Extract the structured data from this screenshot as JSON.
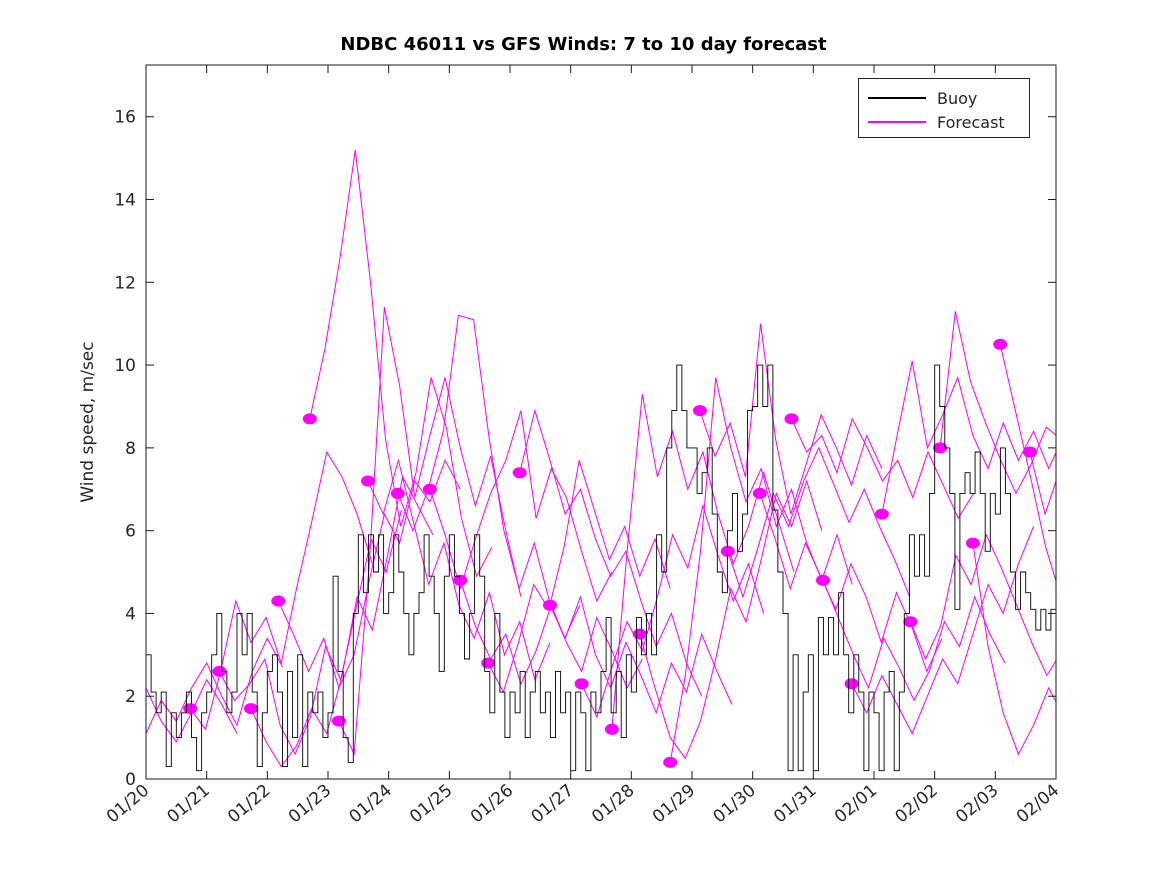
{
  "figure": {
    "title": "NDBC 46011 vs GFS Winds: 7 to 10 day forecast",
    "ylabel": "Wind speed, m/sec"
  },
  "legend": {
    "items": [
      {
        "label": "Buoy",
        "color": "#000000"
      },
      {
        "label": "Forecast",
        "color": "#ff00ff"
      }
    ]
  },
  "chart_data": {
    "type": "line",
    "title": "NDBC 46011 vs GFS Winds: 7 to 10 day forecast",
    "xlabel": "",
    "ylabel": "Wind speed, m/sec",
    "x_tick_labels": [
      "01/20",
      "01/21",
      "01/22",
      "01/23",
      "01/24",
      "01/25",
      "01/26",
      "01/27",
      "01/28",
      "01/29",
      "01/30",
      "01/31",
      "02/01",
      "02/02",
      "02/03",
      "02/04"
    ],
    "y_ticks": [
      0,
      2,
      4,
      6,
      8,
      10,
      12,
      14,
      16
    ],
    "xlim_days": [
      0,
      15
    ],
    "ylim": [
      0,
      17.25
    ],
    "grid": false,
    "legend_position": "top-right",
    "series": [
      {
        "name": "Buoy",
        "type": "step",
        "color": "#000000"
      },
      {
        "name": "Forecast",
        "type": "line-with-start-dots",
        "color": "#ff00ff"
      }
    ],
    "buoy": {
      "color": "#000000",
      "t0": 0,
      "dt": 0.0833333,
      "values": [
        3.0,
        2.1,
        1.6,
        2.1,
        0.3,
        1.6,
        1.0,
        1.6,
        2.1,
        1.0,
        0.2,
        1.6,
        2.1,
        3.0,
        4.0,
        2.6,
        1.6,
        2.1,
        4.0,
        3.0,
        4.0,
        2.1,
        0.3,
        1.6,
        2.6,
        3.0,
        2.1,
        0.3,
        2.6,
        1.0,
        3.0,
        0.3,
        2.1,
        1.6,
        2.1,
        1.0,
        1.6,
        4.9,
        2.6,
        1.0,
        0.4,
        4.0,
        5.9,
        4.5,
        5.9,
        5.0,
        5.9,
        4.0,
        4.5,
        5.9,
        5.0,
        4.0,
        3.0,
        4.0,
        4.5,
        5.9,
        4.9,
        4.0,
        2.6,
        4.9,
        5.9,
        4.9,
        4.0,
        2.9,
        4.0,
        5.9,
        4.9,
        2.6,
        1.6,
        4.0,
        2.1,
        1.0,
        2.1,
        1.6,
        2.6,
        1.0,
        2.1,
        2.6,
        1.6,
        2.1,
        1.0,
        2.6,
        1.6,
        2.1,
        0.2,
        2.1,
        1.6,
        0.2,
        2.1,
        1.6,
        2.6,
        3.9,
        1.6,
        2.6,
        1.0,
        3.0,
        2.1,
        3.9,
        3.0,
        4.0,
        3.0,
        5.9,
        5.0,
        8.0,
        8.9,
        10.0,
        8.9,
        8.0,
        8.0,
        6.9,
        7.4,
        8.0,
        6.4,
        5.0,
        4.5,
        6.0,
        6.9,
        5.5,
        6.4,
        8.9,
        9.0,
        10.0,
        9.0,
        10.0,
        6.5,
        5.0,
        4.0,
        0.2,
        3.0,
        0.2,
        2.1,
        3.0,
        0.2,
        3.9,
        3.0,
        3.9,
        3.0,
        4.5,
        3.0,
        1.6,
        3.0,
        2.1,
        0.2,
        2.1,
        1.6,
        0.2,
        2.1,
        2.6,
        0.2,
        2.1,
        4.0,
        5.9,
        4.9,
        5.9,
        4.9,
        6.9,
        10.0,
        9.0,
        8.0,
        6.9,
        4.1,
        6.9,
        7.4,
        6.9,
        7.9,
        6.9,
        5.5,
        6.9,
        6.4,
        8.0,
        6.9,
        5.0,
        4.1,
        5.0,
        4.5,
        4.1,
        3.6,
        4.1,
        3.6,
        4.1,
        4.0
      ]
    },
    "forecast": {
      "color": "#ff00ff",
      "dt": 0.25,
      "traces": [
        {
          "t0": -1.5,
          "dot": false,
          "v": [
            1.8,
            1.3,
            2.0,
            1.5,
            2.1,
            1.6,
            2.2,
            1.4,
            0.9,
            1.6,
            2.4,
            1.8,
            1.1
          ]
        },
        {
          "t0": -0.75,
          "dot": false,
          "v": [
            2.2,
            1.6,
            2.3,
            1.1,
            1.9,
            1.4,
            2.2,
            2.8,
            2.0,
            1.3,
            2.6,
            3.4,
            2.7
          ]
        },
        {
          "t0": 0.73,
          "dot": true,
          "v": [
            1.7,
            1.2,
            2.6,
            4.3,
            3.3,
            3.9,
            2.8,
            4.6,
            6.2,
            7.9,
            7.3,
            6.4,
            5.2
          ]
        },
        {
          "t0": 1.21,
          "dot": true,
          "v": [
            2.6,
            1.9,
            2.3,
            2.9,
            1.3,
            0.6,
            1.5,
            3.2,
            2.4,
            4.1,
            5.8,
            5.0,
            6.5
          ]
        },
        {
          "t0": 1.73,
          "dot": true,
          "v": [
            1.7,
            0.9,
            0.3,
            0.8,
            1.7,
            1.1,
            2.5,
            4.4,
            3.6,
            5.4,
            7.3,
            6.6,
            5.9
          ]
        },
        {
          "t0": 2.18,
          "dot": true,
          "v": [
            4.3,
            3.5,
            2.6,
            3.4,
            2.2,
            3.0,
            4.8,
            6.4,
            5.7,
            7.2,
            6.7,
            7.7,
            7.0
          ]
        },
        {
          "t0": 2.7,
          "dot": true,
          "v": [
            8.7,
            10.4,
            12.6,
            15.2,
            12.0,
            8.2,
            6.1,
            7.4,
            9.7,
            8.5,
            6.3,
            4.9,
            5.6
          ]
        },
        {
          "t0": 3.18,
          "dot": true,
          "v": [
            1.4,
            0.6,
            5.2,
            11.4,
            9.5,
            6.8,
            8.3,
            9.7,
            8.0,
            6.6,
            7.8,
            6.0,
            4.4
          ]
        },
        {
          "t0": 3.66,
          "dot": true,
          "v": [
            7.2,
            6.4,
            7.7,
            6.2,
            4.7,
            5.7,
            4.2,
            3.4,
            4.5,
            3.0,
            3.8,
            2.4,
            3.3
          ]
        },
        {
          "t0": 4.15,
          "dot": true,
          "v": [
            6.9,
            6.0,
            7.0,
            8.4,
            11.2,
            11.1,
            8.3,
            6.0,
            4.6,
            5.7,
            4.3,
            3.4,
            4.2
          ]
        },
        {
          "t0": 4.68,
          "dot": true,
          "v": [
            7.0,
            5.9,
            4.6,
            5.8,
            6.9,
            7.7,
            8.9,
            6.3,
            7.5,
            6.8,
            5.5,
            4.3,
            5.0
          ]
        },
        {
          "t0": 5.18,
          "dot": true,
          "v": [
            4.8,
            3.7,
            2.9,
            3.5,
            2.3,
            3.1,
            4.2,
            3.3,
            2.6,
            3.9,
            3.1,
            2.2,
            2.9
          ]
        },
        {
          "t0": 5.64,
          "dot": true,
          "v": [
            2.8,
            2.1,
            3.3,
            4.7,
            4.1,
            5.6,
            7.7,
            6.5,
            5.3,
            6.1,
            4.9,
            5.8,
            4.6
          ]
        },
        {
          "t0": 6.16,
          "dot": true,
          "v": [
            7.4,
            8.9,
            7.7,
            6.4,
            7.0,
            5.8,
            4.9,
            5.5,
            4.3,
            3.2,
            4.0,
            2.8,
            2.0
          ]
        },
        {
          "t0": 6.66,
          "dot": true,
          "v": [
            4.2,
            3.4,
            4.4,
            3.0,
            2.2,
            3.3,
            2.5,
            1.6,
            2.8,
            2.1,
            3.5,
            2.6,
            1.8
          ]
        },
        {
          "t0": 7.18,
          "dot": true,
          "v": [
            2.3,
            1.5,
            2.7,
            3.8,
            3.1,
            4.4,
            5.9,
            5.1,
            6.6,
            5.4,
            4.3,
            5.2,
            4.0
          ]
        },
        {
          "t0": 7.68,
          "dot": true,
          "v": [
            1.2,
            5.5,
            9.3,
            7.3,
            8.4,
            7.0,
            7.9,
            6.4,
            5.2,
            6.1,
            7.4,
            6.2,
            5.0
          ]
        },
        {
          "t0": 8.14,
          "dot": true,
          "v": [
            3.5,
            2.2,
            1.0,
            0.5,
            1.4,
            2.9,
            4.6,
            3.8,
            5.3,
            6.9,
            6.1,
            7.2,
            6.0
          ]
        },
        {
          "t0": 8.64,
          "dot": true,
          "v": [
            0.4,
            2.5,
            5.5,
            9.7,
            8.0,
            6.7,
            7.5,
            6.1,
            7.0,
            5.7,
            4.8,
            5.9,
            4.7
          ]
        },
        {
          "t0": 9.13,
          "dot": true,
          "v": [
            8.9,
            7.8,
            8.6,
            7.3,
            11.0,
            8.2,
            6.4,
            7.6,
            8.8,
            8.0,
            7.1,
            8.3,
            7.5
          ]
        },
        {
          "t0": 9.59,
          "dot": true,
          "v": [
            5.5,
            4.4,
            5.6,
            6.9,
            6.1,
            7.2,
            8.0,
            7.1,
            6.2,
            7.0,
            6.1,
            5.3,
            4.4
          ]
        },
        {
          "t0": 10.12,
          "dot": true,
          "v": [
            6.9,
            5.8,
            4.6,
            5.7,
            4.9,
            4.1,
            5.2,
            4.4,
            3.3,
            4.5,
            3.7,
            2.6,
            3.4
          ]
        },
        {
          "t0": 10.64,
          "dot": true,
          "v": [
            8.7,
            7.9,
            8.3,
            7.4,
            8.7,
            8.0,
            7.2,
            7.7,
            6.8,
            7.9,
            7.1,
            6.3,
            6.9
          ]
        },
        {
          "t0": 11.16,
          "dot": true,
          "v": [
            4.8,
            3.9,
            3.0,
            2.2,
            3.4,
            2.7,
            1.9,
            2.6,
            3.8,
            3.2,
            4.4,
            3.5,
            2.8
          ]
        },
        {
          "t0": 11.63,
          "dot": true,
          "v": [
            2.3,
            1.6,
            2.5,
            1.8,
            1.1,
            2.0,
            2.9,
            2.3,
            3.5,
            4.7,
            4.0,
            5.2,
            6.1
          ]
        },
        {
          "t0": 12.13,
          "dot": true,
          "v": [
            6.4,
            8.3,
            10.1,
            8.0,
            8.8,
            9.7,
            8.3,
            7.5,
            8.6,
            7.7,
            8.4,
            7.5,
            8.3
          ]
        },
        {
          "t0": 12.6,
          "dot": true,
          "v": [
            3.8,
            2.9,
            3.7,
            5.4,
            4.7,
            5.9,
            5.1,
            4.2,
            3.3,
            2.5,
            3.1,
            2.2,
            1.5
          ]
        },
        {
          "t0": 13.09,
          "dot": true,
          "v": [
            8.0,
            11.3,
            9.6,
            8.6,
            7.7,
            6.9,
            7.6,
            8.5,
            8.2,
            7.4,
            8.1,
            7.3,
            8.0
          ]
        },
        {
          "t0": 13.63,
          "dot": true,
          "v": [
            5.7,
            3.2,
            1.6,
            0.6,
            1.3,
            2.2,
            1.5,
            0.8,
            1.6,
            2.5,
            1.9,
            1.2,
            2.1
          ]
        },
        {
          "t0": 14.08,
          "dot": true,
          "v": [
            10.5,
            8.9,
            7.3,
            5.6,
            4.4,
            3.2,
            2.4,
            3.0,
            2.2,
            1.6,
            2.3,
            1.7,
            2.5
          ]
        },
        {
          "t0": 14.57,
          "dot": true,
          "v": [
            7.9,
            6.4,
            7.5,
            8.6,
            7.2,
            6.0,
            5.1,
            4.3,
            3.5,
            2.8,
            2.2,
            1.7,
            1.3
          ]
        }
      ]
    }
  }
}
